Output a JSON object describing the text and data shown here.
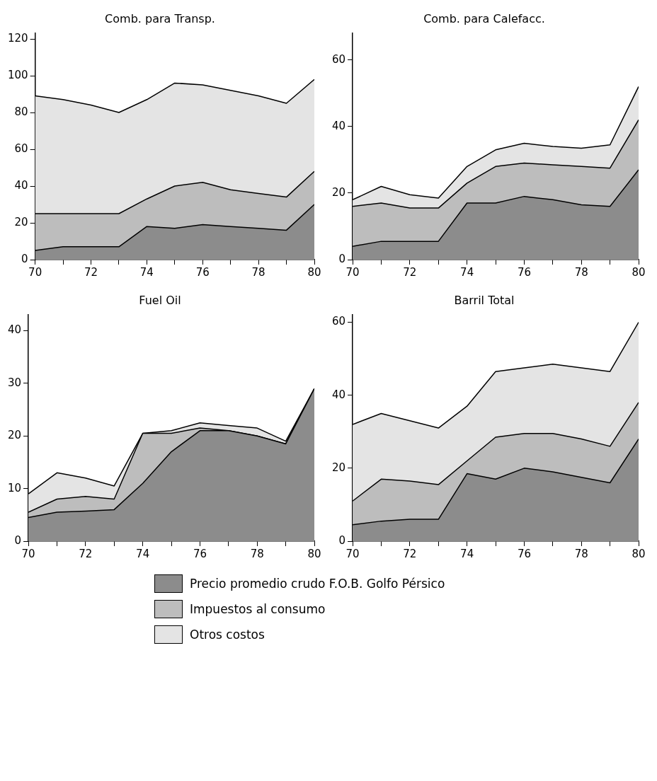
{
  "chart_data": [
    {
      "type": "area",
      "title": "Comb. para Transp.",
      "stacked": true,
      "legend": "bottom",
      "x": [
        70,
        71,
        72,
        73,
        74,
        75,
        76,
        77,
        78,
        79,
        80
      ],
      "xlim": [
        70,
        80
      ],
      "xticks": [
        70,
        {
          "value": 71,
          "label": null
        },
        72,
        {
          "value": 73,
          "label": null
        },
        74,
        {
          "value": 75,
          "label": null
        },
        76,
        {
          "value": 77,
          "label": null
        },
        78,
        {
          "value": 79,
          "label": null
        },
        80
      ],
      "ylim": [
        0,
        123
      ],
      "yticks": [
        0,
        20,
        40,
        60,
        80,
        100,
        120
      ],
      "grid": false,
      "series": [
        {
          "name": "Precio promedio crudo F.O.B. Golfo Pérsico",
          "color": "#8c8c8c",
          "values": [
            5,
            7,
            7,
            7,
            18,
            17,
            19,
            18,
            17,
            16,
            30
          ]
        },
        {
          "name": "Impuestos al consumo",
          "color": "#bdbdbd",
          "values": [
            20,
            18,
            18,
            18,
            15,
            23,
            23,
            20,
            19,
            18,
            18
          ]
        },
        {
          "name": "Otros costos",
          "color": "#e4e4e4",
          "values": [
            64,
            62,
            59,
            55,
            54,
            56,
            53,
            54,
            53,
            51,
            50
          ]
        }
      ]
    },
    {
      "type": "area",
      "title": "Comb. para Calefacc.",
      "stacked": true,
      "x": [
        70,
        71,
        72,
        73,
        74,
        75,
        76,
        77,
        78,
        79,
        80
      ],
      "xlim": [
        70,
        80
      ],
      "xticks": [
        70,
        {
          "value": 71,
          "label": null
        },
        72,
        {
          "value": 73,
          "label": null
        },
        74,
        {
          "value": 75,
          "label": null
        },
        76,
        {
          "value": 77,
          "label": null
        },
        78,
        {
          "value": 79,
          "label": null
        },
        80
      ],
      "ylim": [
        0,
        68
      ],
      "yticks": [
        0,
        20,
        40,
        60
      ],
      "grid": false,
      "series": [
        {
          "color": "#8c8c8c",
          "values": [
            4,
            5.5,
            5.5,
            5.5,
            17,
            17,
            19,
            18,
            16.5,
            16,
            27
          ]
        },
        {
          "color": "#bdbdbd",
          "values": [
            12,
            11.5,
            10,
            10,
            6,
            11,
            10,
            10.5,
            11.5,
            11.5,
            15
          ]
        },
        {
          "color": "#e4e4e4",
          "values": [
            2,
            5,
            4,
            3,
            5,
            5,
            6,
            5.5,
            5.5,
            7,
            10
          ]
        }
      ]
    },
    {
      "type": "area",
      "title": "Fuel Oil",
      "stacked": true,
      "x": [
        70,
        71,
        72,
        73,
        74,
        75,
        76,
        77,
        78,
        79,
        80
      ],
      "xlim": [
        70,
        80
      ],
      "xticks": [
        70,
        {
          "value": 71,
          "label": null
        },
        72,
        {
          "value": 73,
          "label": null
        },
        74,
        {
          "value": 75,
          "label": null
        },
        76,
        {
          "value": 77,
          "label": null
        },
        78,
        {
          "value": 79,
          "label": null
        },
        80
      ],
      "ylim": [
        0,
        43
      ],
      "yticks": [
        0,
        10,
        20,
        30,
        40
      ],
      "grid": false,
      "series": [
        {
          "color": "#8c8c8c",
          "values": [
            4.5,
            5.5,
            5.7,
            6,
            11,
            17,
            21,
            21,
            20,
            18.5,
            29
          ]
        },
        {
          "color": "#bdbdbd",
          "values": [
            1,
            2.5,
            2.8,
            2,
            9.5,
            3.5,
            0.5,
            0,
            0,
            0,
            0
          ]
        },
        {
          "color": "#e4e4e4",
          "values": [
            3.5,
            5,
            3.5,
            2.5,
            0,
            0.5,
            1,
            1,
            1.5,
            0.5,
            0
          ]
        }
      ]
    },
    {
      "type": "area",
      "title": "Barril Total",
      "stacked": true,
      "x": [
        70,
        71,
        72,
        73,
        74,
        75,
        76,
        77,
        78,
        79,
        80
      ],
      "xlim": [
        70,
        80
      ],
      "xticks": [
        70,
        {
          "value": 71,
          "label": null
        },
        72,
        {
          "value": 73,
          "label": null
        },
        74,
        {
          "value": 75,
          "label": null
        },
        76,
        {
          "value": 77,
          "label": null
        },
        78,
        {
          "value": 79,
          "label": null
        },
        80
      ],
      "ylim": [
        0,
        62
      ],
      "yticks": [
        0,
        20,
        40,
        60
      ],
      "grid": false,
      "series": [
        {
          "color": "#8c8c8c",
          "values": [
            4.5,
            5.5,
            6,
            6,
            18.5,
            17,
            20,
            19,
            17.5,
            16,
            28
          ]
        },
        {
          "color": "#bdbdbd",
          "values": [
            6.5,
            11.5,
            10.5,
            9.5,
            3.5,
            11.5,
            9.5,
            10.5,
            10.5,
            10,
            10
          ]
        },
        {
          "color": "#e4e4e4",
          "values": [
            21,
            18,
            16.5,
            15.5,
            15,
            18,
            18,
            19,
            19.5,
            20.5,
            22
          ]
        }
      ]
    }
  ]
}
